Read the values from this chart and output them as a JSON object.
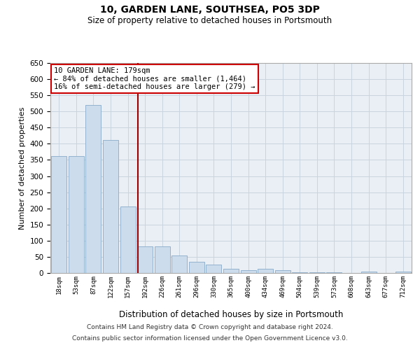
{
  "title": "10, GARDEN LANE, SOUTHSEA, PO5 3DP",
  "subtitle": "Size of property relative to detached houses in Portsmouth",
  "xlabel": "Distribution of detached houses by size in Portsmouth",
  "ylabel": "Number of detached properties",
  "footer_line1": "Contains HM Land Registry data © Crown copyright and database right 2024.",
  "footer_line2": "Contains public sector information licensed under the Open Government Licence v3.0.",
  "property_label": "10 GARDEN LANE: 179sqm",
  "annotation_line1": "← 84% of detached houses are smaller (1,464)",
  "annotation_line2": "16% of semi-detached houses are larger (279) →",
  "bin_labels": [
    "18sqm",
    "53sqm",
    "87sqm",
    "122sqm",
    "157sqm",
    "192sqm",
    "226sqm",
    "261sqm",
    "296sqm",
    "330sqm",
    "365sqm",
    "400sqm",
    "434sqm",
    "469sqm",
    "504sqm",
    "539sqm",
    "573sqm",
    "608sqm",
    "643sqm",
    "677sqm",
    "712sqm"
  ],
  "bar_values": [
    362,
    362,
    519,
    412,
    206,
    83,
    83,
    55,
    35,
    25,
    13,
    8,
    12,
    8,
    2,
    2,
    2,
    0,
    5,
    0,
    5
  ],
  "bar_color": "#ccdcec",
  "bar_edge_color": "#88aac8",
  "vline_pos": 4.58,
  "vline_color": "#990000",
  "grid_color": "#c8d4df",
  "bg_color": "#eaeff5",
  "annotation_box_edge": "#cc0000",
  "ylim": [
    0,
    650
  ],
  "yticks": [
    0,
    50,
    100,
    150,
    200,
    250,
    300,
    350,
    400,
    450,
    500,
    550,
    600,
    650
  ]
}
